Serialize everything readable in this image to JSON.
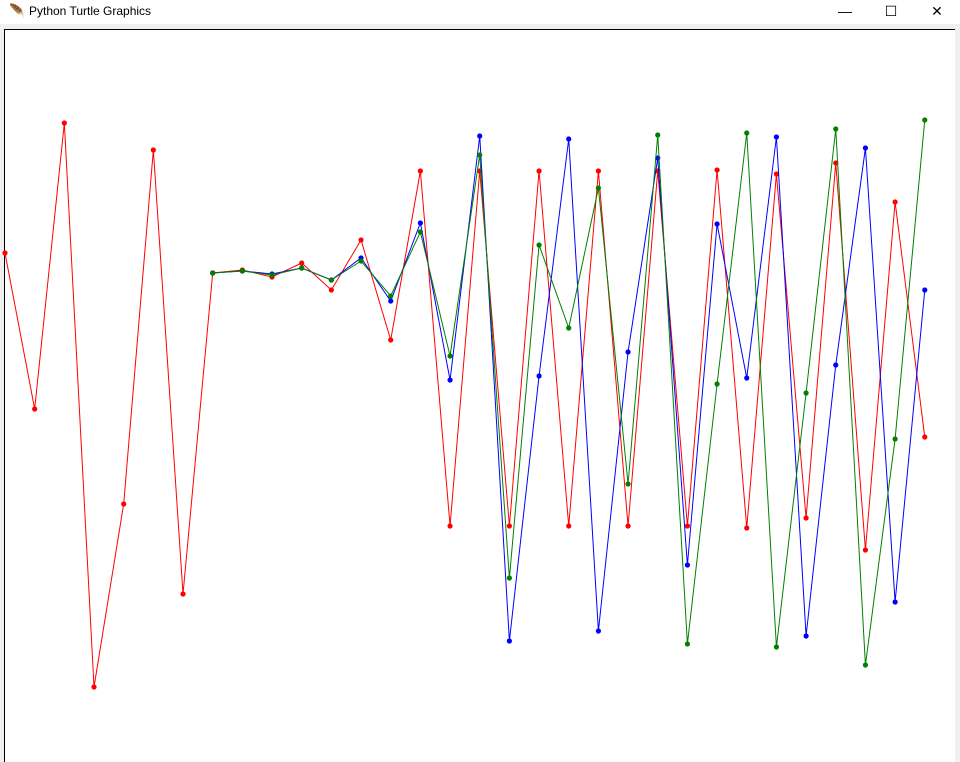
{
  "window": {
    "title": "Python Turtle Graphics",
    "icon": "feather-icon",
    "minimize": "—",
    "maximize": "☐",
    "close": "✕"
  },
  "chart_data": {
    "type": "line",
    "title": "",
    "xlabel": "",
    "ylabel": "",
    "grid": false,
    "markers": "dot",
    "series": [
      {
        "color": "#ff0000",
        "x_start": 0,
        "values": [
          143,
          -13,
          273,
          -291,
          -108,
          246,
          -198,
          123,
          126,
          119,
          133,
          106,
          156,
          56,
          225,
          -130,
          225,
          -130,
          225,
          -130,
          225,
          -130,
          225,
          -130,
          226,
          -132,
          222,
          -122,
          233,
          -154,
          194,
          -41
        ]
      },
      {
        "color": "#0000ff",
        "x_start": 7,
        "values": [
          123,
          125,
          122,
          128,
          116,
          138,
          95,
          173,
          16,
          260,
          -245,
          20,
          257,
          -235,
          44,
          238,
          -169,
          172,
          18,
          259,
          -240,
          31,
          248,
          -206,
          106
        ]
      },
      {
        "color": "#008000",
        "x_start": 7,
        "values": [
          123,
          125,
          121,
          128,
          116,
          135,
          100,
          164,
          40,
          241,
          -182,
          151,
          68,
          208,
          -88,
          261,
          -248,
          12,
          263,
          -251,
          3,
          267,
          -269,
          -43,
          276
        ]
      }
    ]
  }
}
